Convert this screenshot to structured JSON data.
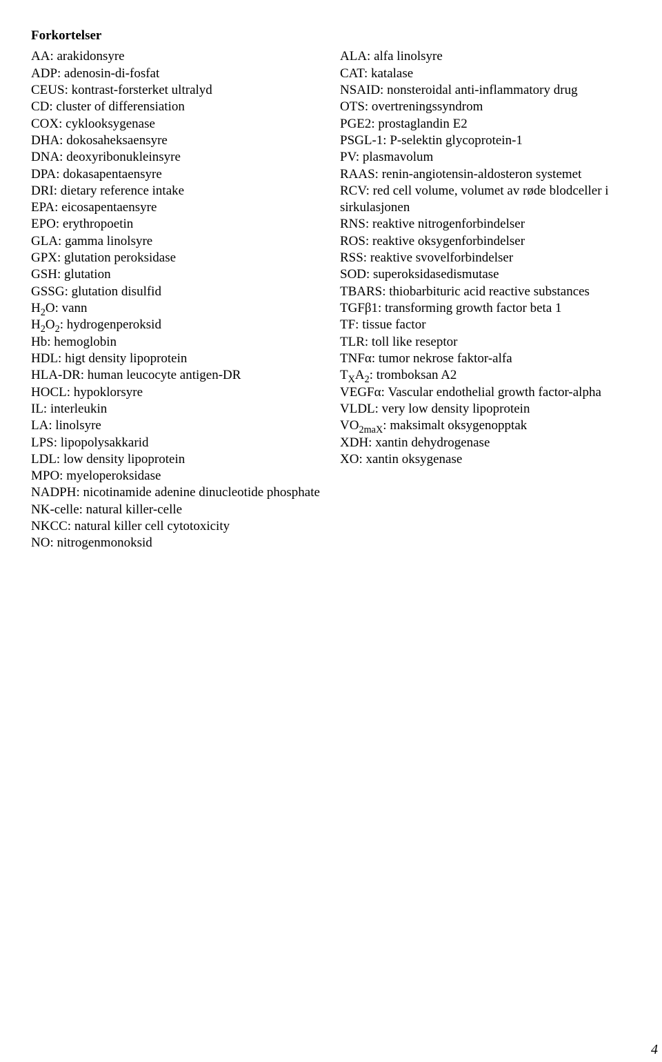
{
  "heading": "Forkortelser",
  "left": [
    "AA: arakidonsyre",
    "ADP: adenosin-di-fosfat",
    "CEUS: kontrast-forsterket ultralyd",
    "CD: cluster of differensiation",
    "COX: cyklooksygenase",
    "DHA: dokosaheksaensyre",
    "DNA: deoxyribonukleinsyre",
    "DPA: dokasapentaensyre",
    "DRI: dietary reference intake",
    "EPA: eicosapentaensyre",
    "EPO: erythropoetin",
    "GLA: gamma linolsyre",
    "GPX: glutation peroksidase",
    "GSH: glutation",
    "GSSG: glutation disulfid",
    "H₂O: vann",
    "H₂O₂: hydrogenperoksid",
    "Hb: hemoglobin",
    "HDL: higt density lipoprotein",
    "HLA-DR: human leucocyte antigen-DR",
    "HOCL: hypoklorsyre",
    "IL: interleukin",
    "LA: linolsyre",
    "LPS: lipopolysakkarid",
    "LDL: low density lipoprotein",
    "MPO: myeloperoksidase",
    "NADPH: nicotinamide adenine dinucleotide phosphate",
    "NK-celle: natural killer-celle",
    "NKCC: natural killer cell cytotoxicity",
    "NO: nitrogenmonoksid"
  ],
  "right": [
    "ALA: alfa linolsyre",
    "CAT: katalase",
    "NSAID: nonsteroidal anti-inflammatory drug",
    "OTS: overtreningssyndrom",
    "PGE2: prostaglandin E2",
    "PSGL-1: P-selektin glycoprotein-1",
    "PV: plasmavolum",
    "RAAS: renin-angiotensin-aldosteron systemet",
    "RCV: red cell volume, volumet av røde blodceller i sirkulasjonen",
    "RNS: reaktive nitrogenforbindelser",
    "ROS: reaktive oksygenforbindelser",
    "RSS: reaktive svovelforbindelser",
    "SOD: superoksidasedismutase",
    "TBARS: thiobarbituric acid reactive substances",
    "TGFβ1: transforming growth factor beta 1",
    "TF: tissue factor",
    "TLR: toll like reseptor",
    "TNFα: tumor nekrose faktor-alfa",
    "TₓA₂: tromboksan A2",
    "VEGFα: Vascular endothelial growth factor-alpha",
    "VLDL: very low density lipoprotein",
    "VO₂ₘₐₓ: maksimalt oksygenopptak",
    "XDH: xantin dehydrogenase",
    "XO: xantin oksygenase"
  ],
  "corner": "4"
}
